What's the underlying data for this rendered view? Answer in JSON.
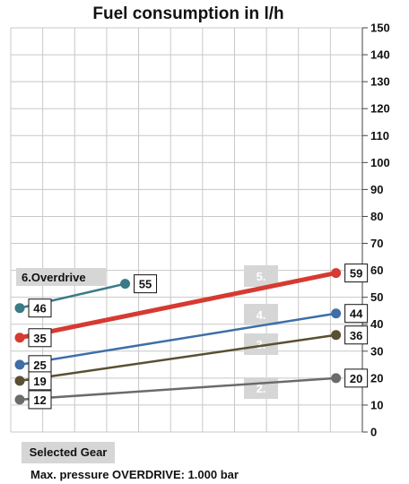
{
  "chart_data": {
    "type": "line",
    "title": "Fuel consumption in l/h",
    "ylim": [
      0,
      150
    ],
    "y_ticks": [
      0,
      10,
      20,
      30,
      40,
      50,
      60,
      70,
      80,
      90,
      100,
      110,
      120,
      130,
      140,
      150
    ],
    "y_axis_side": "right",
    "grid": true,
    "series": [
      {
        "name": "6.Overdrive",
        "color": "#3a7a86",
        "x": [
          0,
          6
        ],
        "y": [
          46,
          55
        ],
        "start_label": "46",
        "end_label": "55"
      },
      {
        "name": "5.",
        "color": "#d63a30",
        "x": [
          0,
          18
        ],
        "y": [
          35,
          59
        ],
        "start_label": "35",
        "end_label": "59"
      },
      {
        "name": "4.",
        "color": "#3f6ea8",
        "x": [
          0,
          18
        ],
        "y": [
          25,
          44
        ],
        "start_label": "25",
        "end_label": "44"
      },
      {
        "name": "3.",
        "color": "#5a4f32",
        "x": [
          0,
          18
        ],
        "y": [
          19,
          36
        ],
        "start_label": "19",
        "end_label": "36"
      },
      {
        "name": "2.",
        "color": "#6b6b6b",
        "x": [
          0,
          18
        ],
        "y": [
          12,
          20
        ],
        "start_label": "12",
        "end_label": "20"
      }
    ]
  },
  "footer": {
    "selected_gear": "Selected Gear",
    "pressure_note": "Max. pressure OVERDRIVE:  1.000 bar"
  }
}
